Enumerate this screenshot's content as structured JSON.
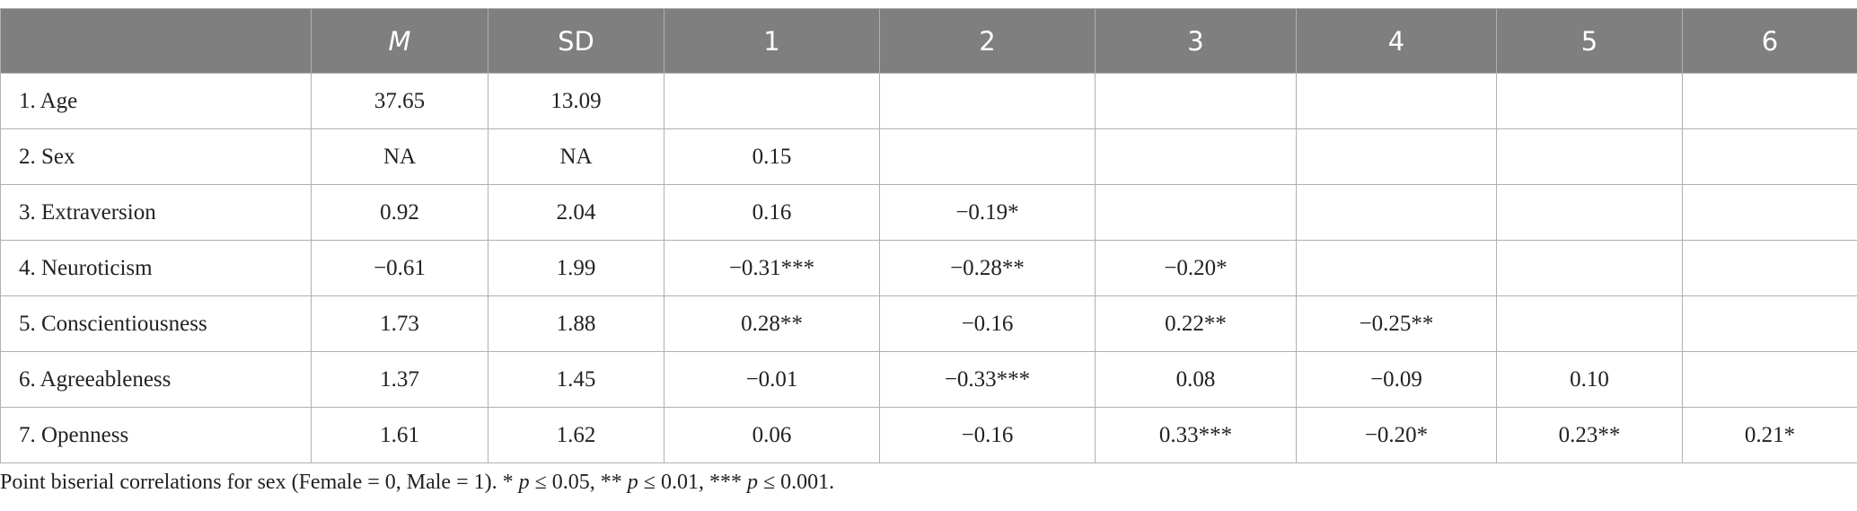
{
  "table": {
    "header": [
      "M",
      "SD",
      "1",
      "2",
      "3",
      "4",
      "5",
      "6"
    ],
    "rows": [
      [
        "1. Age",
        "37.65",
        "13.09"
      ],
      [
        "2. Sex",
        "NA",
        "NA",
        "0.15"
      ],
      [
        "3. Extraversion",
        "0.92",
        "2.04",
        "0.16",
        "−0.19*"
      ],
      [
        "4. Neuroticism",
        "−0.61",
        "1.99",
        "−0.31***",
        "−0.28**",
        "−0.20*"
      ],
      [
        "5. Conscientiousness",
        "1.73",
        "1.88",
        "0.28**",
        "−0.16",
        "0.22**",
        "−0.25**"
      ],
      [
        "6. Agreeableness",
        "1.37",
        "1.45",
        "−0.01",
        "−0.33***",
        "0.08",
        "−0.09",
        "0.10"
      ],
      [
        "7. Openness",
        "1.61",
        "1.62",
        "0.06",
        "−0.16",
        "0.33***",
        "−0.20*",
        "0.23**",
        "0.21*"
      ]
    ]
  },
  "footnote": [
    "Point biserial correlations for sex (Female = 0, Male = 1). * ",
    "p",
    " ≤ 0.05, ** ",
    "p",
    " ≤ 0.01, *** ",
    "p",
    " ≤ 0.001."
  ]
}
